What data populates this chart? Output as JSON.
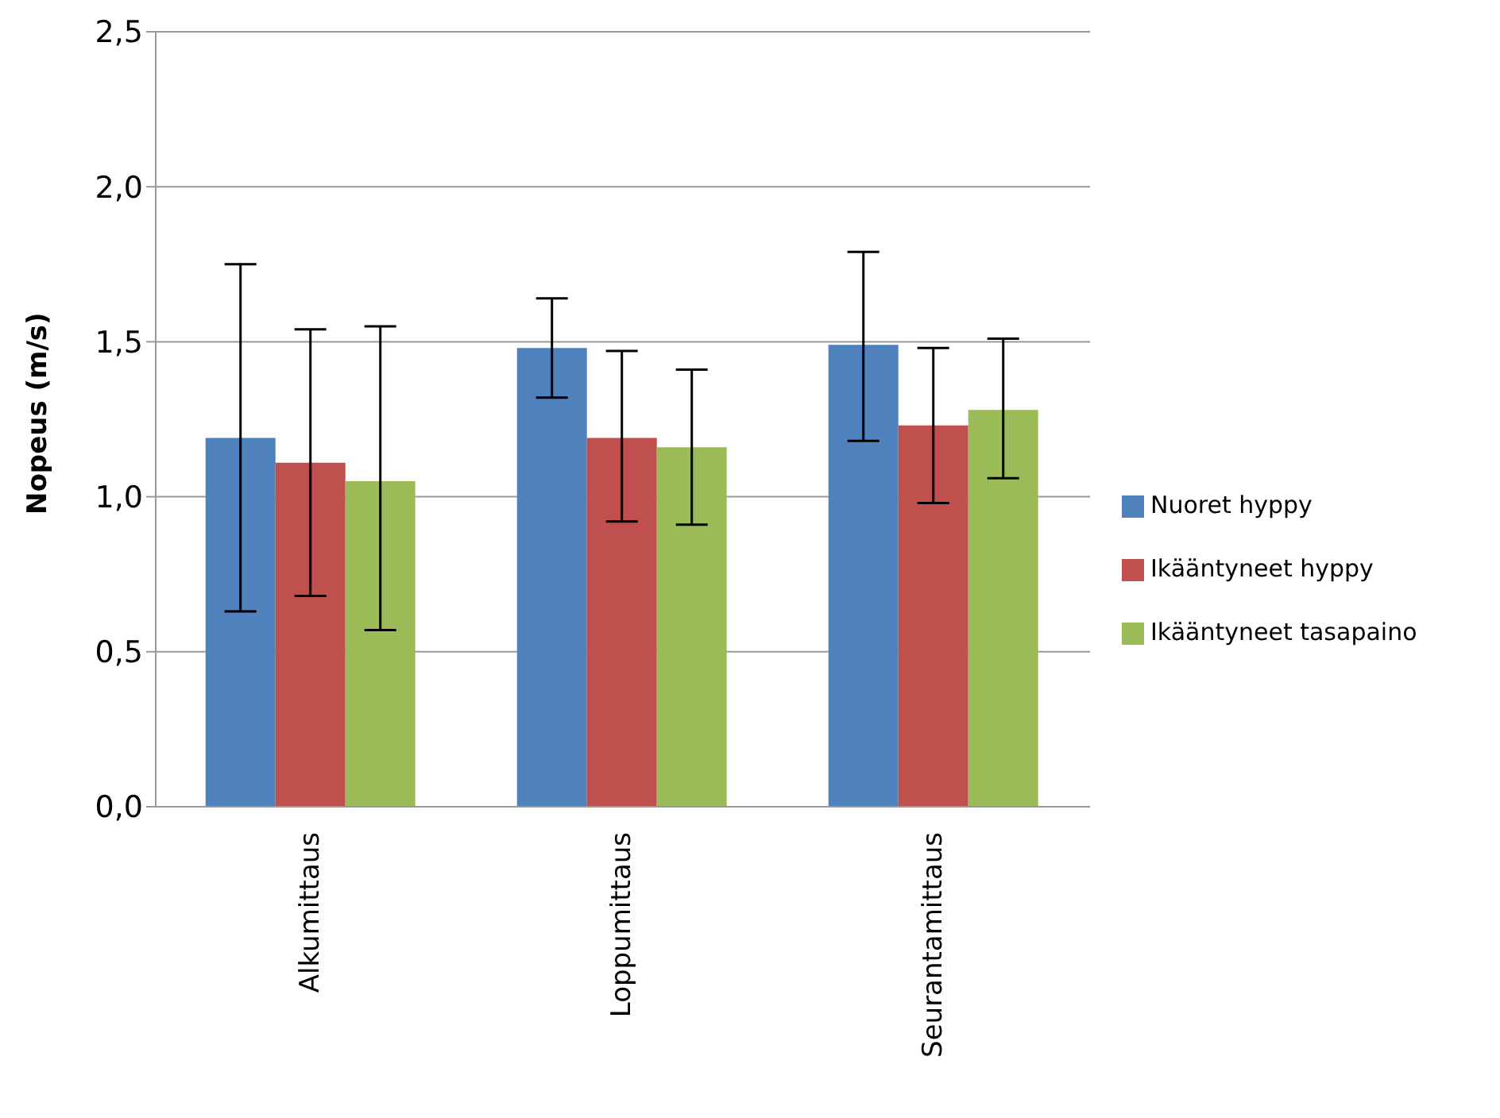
{
  "chart_data": {
    "type": "bar",
    "ylabel": "Nopeus (m/s)",
    "categories": [
      "Alkumittaus",
      "Loppumittaus",
      "Seurantamittaus"
    ],
    "series": [
      {
        "name": "Nuoret hyppy",
        "color": "#4f81bd",
        "values": [
          1.19,
          1.48,
          1.49
        ],
        "errors": [
          [
            0.63,
            1.75
          ],
          [
            1.32,
            1.64
          ],
          [
            1.18,
            1.79
          ]
        ]
      },
      {
        "name": "Ikääntyneet hyppy",
        "color": "#c0504d",
        "values": [
          1.11,
          1.19,
          1.23
        ],
        "errors": [
          [
            0.68,
            1.54
          ],
          [
            0.92,
            1.47
          ],
          [
            0.98,
            1.48
          ]
        ]
      },
      {
        "name": "Ikääntyneet tasapaino",
        "color": "#9bbb59",
        "values": [
          1.05,
          1.16,
          1.28
        ],
        "errors": [
          [
            0.57,
            1.55
          ],
          [
            0.91,
            1.41
          ],
          [
            1.06,
            1.51
          ]
        ]
      }
    ],
    "ylim": [
      0,
      2.5
    ],
    "yticks": [
      {
        "value": 0,
        "label": "0,0"
      },
      {
        "value": 0.5,
        "label": "0,5"
      },
      {
        "value": 1,
        "label": "1,0"
      },
      {
        "value": 1.5,
        "label": "1,5"
      },
      {
        "value": 2,
        "label": "2,0"
      },
      {
        "value": 2.5,
        "label": "2,5"
      }
    ],
    "grid": "y",
    "legend": "right"
  }
}
